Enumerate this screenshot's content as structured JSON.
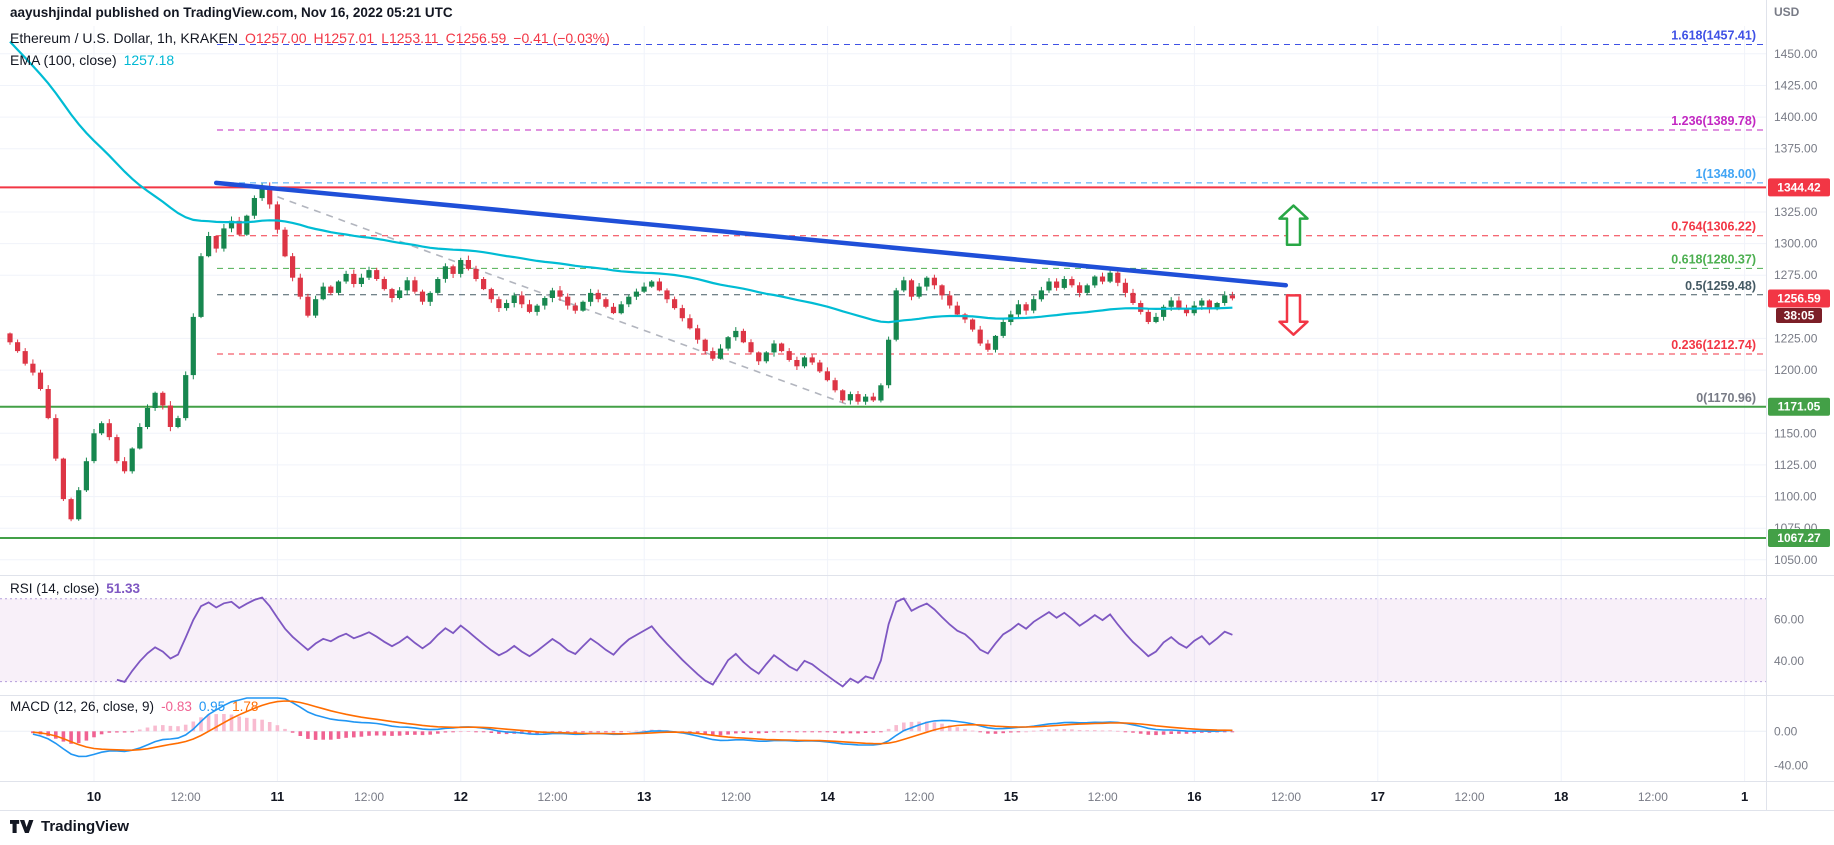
{
  "header": {
    "published_line": "aayushjindal published on TradingView.com, Nov 16, 2022 05:21 UTC"
  },
  "legend": {
    "symbol": "Ethereum / U.S. Dollar, 1h, KRAKEN",
    "ohlc": [
      "O1257.00",
      "H1257.01",
      "L1253.11",
      "C1256.59",
      "−0.41 (−0.03%)"
    ],
    "ema_label": "EMA (100, close)",
    "ema_value": "1257.18"
  },
  "price_axis": {
    "unit": "USD",
    "ticks": [
      "1450.00",
      "1425.00",
      "1400.00",
      "1375.00",
      "1325.00",
      "1300.00",
      "1275.00",
      "1225.00",
      "1200.00",
      "1150.00",
      "1125.00",
      "1100.00",
      "1075.00",
      "1050.00"
    ],
    "badges": [
      {
        "text": "1344.42",
        "price": 1344.42,
        "bg": "#f23645"
      },
      {
        "text": "1256.59",
        "price": 1256.59,
        "bg": "#f23645",
        "sub": "38:05",
        "sub_bg": "#7c1f28"
      },
      {
        "text": "1171.05",
        "price": 1171.05,
        "bg": "#43a047"
      },
      {
        "text": "1067.27",
        "price": 1067.27,
        "bg": "#43a047"
      }
    ]
  },
  "rsi": {
    "label": "RSI (14, close)",
    "value": "51.33",
    "ticks": [
      "60.00",
      "40.00"
    ]
  },
  "macd": {
    "label": "MACD (12, 26, close, 9)",
    "values": [
      "-0.83",
      "0.95",
      "1.78"
    ],
    "ticks": [
      "0.00",
      "-40.00"
    ]
  },
  "time_axis": {
    "labels": [
      "10",
      "12:00",
      "11",
      "12:00",
      "12",
      "12:00",
      "13",
      "12:00",
      "14",
      "12:00",
      "15",
      "12:00",
      "16",
      "12:00",
      "17",
      "12:00",
      "18",
      "12:00",
      "1"
    ]
  },
  "footer": {
    "brand": "TradingView"
  },
  "chart_data": {
    "type": "candlestick",
    "title": "Ethereum / U.S. Dollar, 1h, KRAKEN",
    "interval": "1h",
    "exchange": "KRAKEN",
    "last": {
      "open": 1257.0,
      "high": 1257.01,
      "low": 1253.11,
      "close": 1256.59,
      "change": -0.41,
      "change_pct": -0.03
    },
    "start_time": "Nov 9 13:00 UTC",
    "x_days": [
      "10",
      "11",
      "12",
      "13",
      "14",
      "15",
      "16",
      "17",
      "18"
    ],
    "y_range": [
      1038,
      1472
    ],
    "closes": [
      1222,
      1215,
      1205,
      1198,
      1185,
      1162,
      1130,
      1098,
      1082,
      1105,
      1128,
      1150,
      1158,
      1147,
      1128,
      1120,
      1138,
      1155,
      1170,
      1182,
      1172,
      1155,
      1162,
      1196,
      1242,
      1290,
      1306,
      1296,
      1312,
      1318,
      1307,
      1322,
      1336,
      1345,
      1331,
      1311,
      1290,
      1273,
      1258,
      1243,
      1256,
      1266,
      1261,
      1270,
      1276,
      1268,
      1273,
      1279,
      1272,
      1264,
      1257,
      1263,
      1271,
      1262,
      1254,
      1261,
      1272,
      1282,
      1276,
      1287,
      1280,
      1272,
      1264,
      1256,
      1249,
      1253,
      1259,
      1252,
      1246,
      1251,
      1257,
      1263,
      1258,
      1251,
      1247,
      1254,
      1261,
      1256,
      1250,
      1245,
      1252,
      1258,
      1262,
      1266,
      1270,
      1263,
      1256,
      1249,
      1241,
      1233,
      1224,
      1215,
      1209,
      1217,
      1226,
      1231,
      1222,
      1214,
      1207,
      1214,
      1221,
      1215,
      1208,
      1203,
      1210,
      1206,
      1199,
      1192,
      1184,
      1176,
      1181,
      1175,
      1179,
      1176,
      1188,
      1224,
      1263,
      1271,
      1258,
      1266,
      1273,
      1267,
      1259,
      1251,
      1244,
      1240,
      1232,
      1221,
      1216,
      1227,
      1238,
      1244,
      1252,
      1247,
      1256,
      1263,
      1270,
      1265,
      1272,
      1267,
      1261,
      1267,
      1274,
      1270,
      1277,
      1269,
      1261,
      1253,
      1246,
      1238,
      1242,
      1250,
      1255,
      1249,
      1245,
      1251,
      1255,
      1248,
      1253,
      1259,
      1256.59
    ],
    "colors": {
      "up": "#17874f",
      "down": "#dd3545"
    },
    "overlays": {
      "ema100": {
        "period": 100,
        "last": 1257.18,
        "seed": 1466,
        "color": "#00bcd4"
      },
      "trendline_blue": {
        "anchors": [
          [
            27,
            1348
          ],
          [
            167,
            1267
          ]
        ],
        "color": "#1f4fd8"
      },
      "trendline_gray": {
        "anchors": [
          [
            35,
            1337
          ],
          [
            110,
            1172
          ]
        ],
        "color": "#b2b5be"
      },
      "hlines": [
        {
          "price": 1344.42,
          "color": "#f23645"
        },
        {
          "price": 1171.05,
          "color": "#43a047"
        },
        {
          "price": 1067.27,
          "color": "#43a047"
        }
      ],
      "fib": [
        {
          "label": "1.618(1457.41)",
          "price": 1457.41,
          "color": "#3f51e5"
        },
        {
          "label": "1.236(1389.78)",
          "price": 1389.78,
          "color": "#c227c2"
        },
        {
          "label": "1(1348.00)",
          "price": 1348.0,
          "color": "#42a5f5"
        },
        {
          "label": "0.764(1306.22)",
          "price": 1306.22,
          "color": "#f23645"
        },
        {
          "label": "0.618(1280.37)",
          "price": 1280.37,
          "color": "#4caf50"
        },
        {
          "label": "0.5(1259.48)",
          "price": 1259.48,
          "color": "#455a64"
        },
        {
          "label": "0.236(1212.74)",
          "price": 1212.74,
          "color": "#f23645"
        },
        {
          "label": "0(1170.96)",
          "price": 1170.96,
          "color": "#787b86"
        }
      ]
    },
    "markers": [
      {
        "shape": "arrow-up",
        "color": "#28a745",
        "i": 168,
        "price_top": 1330,
        "price_bottom": 1299
      },
      {
        "shape": "arrow-down",
        "color": "#f23645",
        "i": 168,
        "price_top": 1259,
        "price_bottom": 1228
      }
    ],
    "indicators": {
      "rsi": {
        "period": 14,
        "last": 51.33,
        "bands": [
          70,
          30
        ]
      },
      "macd": {
        "fast": 12,
        "slow": 26,
        "source": "close",
        "signal": 9
      }
    }
  }
}
